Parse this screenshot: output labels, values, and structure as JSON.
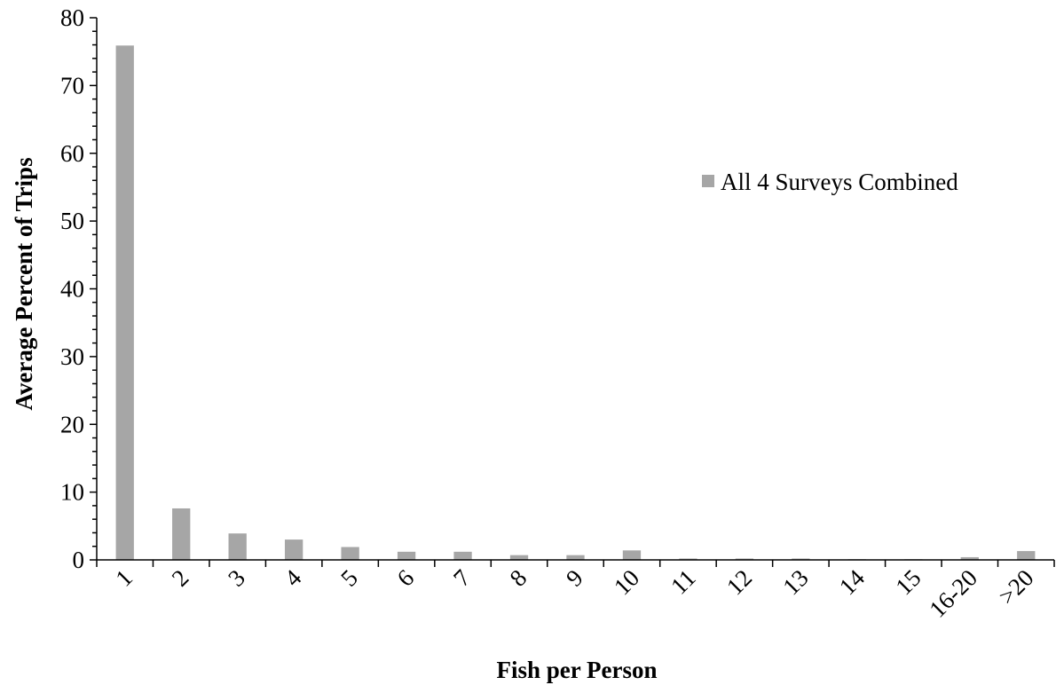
{
  "chart_data": {
    "type": "bar",
    "title": "",
    "xlabel": "Fish per Person",
    "ylabel": "Average Percent of Trips",
    "ylim": [
      0,
      80
    ],
    "yticks": [
      0,
      10,
      20,
      30,
      40,
      50,
      60,
      70,
      80
    ],
    "yminor_step": 2,
    "categories": [
      "1",
      "2",
      "3",
      "4",
      "5",
      "6",
      "7",
      "8",
      "9",
      "10",
      "11",
      "12",
      "13",
      "14",
      "15",
      "16-20",
      ">20"
    ],
    "series": [
      {
        "name": "All 4 Surveys Combined",
        "color": "#a6a6a6",
        "values": [
          75.9,
          7.6,
          3.9,
          3.0,
          1.9,
          1.2,
          1.2,
          0.7,
          0.7,
          1.4,
          0.2,
          0.2,
          0.2,
          0.1,
          0.1,
          0.4,
          1.3
        ]
      }
    ],
    "grid": false,
    "legend_position": "right"
  }
}
